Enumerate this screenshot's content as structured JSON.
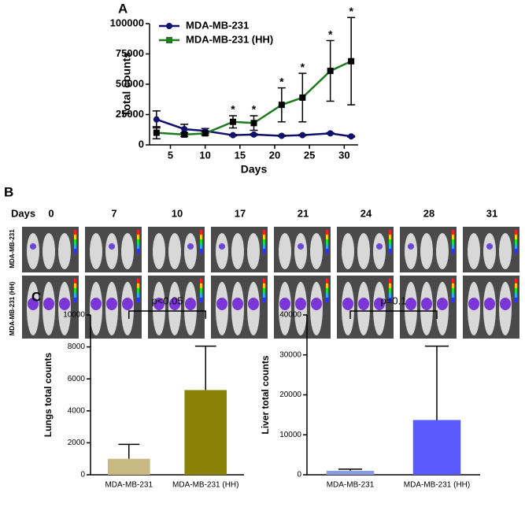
{
  "chart_data": [
    {
      "type": "line",
      "panel": "A",
      "xlabel": "Days",
      "ylabel": "Total counts",
      "x": [
        3,
        7,
        10,
        14,
        17,
        21,
        24,
        28,
        31
      ],
      "xlim": [
        2,
        32
      ],
      "xticks": [
        5,
        10,
        15,
        20,
        25,
        30
      ],
      "ylim": [
        0,
        100000
      ],
      "yticks": [
        0,
        25000,
        50000,
        75000,
        100000
      ],
      "legend": "top-left",
      "series": [
        {
          "name": "MDA-MB-231",
          "color": "#10106e",
          "marker": "circle",
          "values": [
            21000,
            13000,
            11500,
            8000,
            8500,
            7500,
            8000,
            9500,
            7000
          ],
          "errors": [
            7000,
            4000,
            2000,
            600,
            600,
            500,
            500,
            600,
            500
          ]
        },
        {
          "name": "MDA-MB-231 (HH)",
          "color": "#1f7a1f",
          "marker": "square",
          "values": [
            10000,
            8500,
            9500,
            19000,
            18000,
            33000,
            39000,
            61000,
            69000
          ],
          "errors": [
            5000,
            1500,
            1500,
            5000,
            6000,
            14000,
            20000,
            25000,
            36000
          ],
          "annotations": [
            null,
            null,
            null,
            "*",
            "*",
            "*",
            "*",
            "*",
            "*"
          ]
        }
      ]
    },
    {
      "type": "bar",
      "panel": "C",
      "ylabel": "Lungs total counts",
      "categories": [
        "MDA-MB-231",
        "MDA-MB-231 (HH)"
      ],
      "values": [
        1000,
        5300
      ],
      "errors": [
        900,
        2750
      ],
      "colors": [
        "#c8b882",
        "#8a8206"
      ],
      "ylim": [
        0,
        10000
      ],
      "yticks": [
        0,
        2000,
        4000,
        6000,
        8000,
        10000
      ],
      "comparison": "p<0.05"
    },
    {
      "type": "bar",
      "ylabel": "Liver total counts",
      "categories": [
        "MDA-MB-231",
        "MDA-MB-231 (HH)"
      ],
      "values": [
        1000,
        13700
      ],
      "errors": [
        400,
        18500
      ],
      "colors": [
        "#8c9be6",
        "#5a5aff"
      ],
      "ylim": [
        0,
        40000
      ],
      "yticks": [
        0,
        10000,
        20000,
        30000,
        40000
      ],
      "comparison": "p=0.1"
    }
  ],
  "image_panel": {
    "label": "B",
    "row_header": "Days",
    "days": [
      "0",
      "7",
      "10",
      "17",
      "21",
      "24",
      "28",
      "31"
    ],
    "rows": [
      "MDA-MB-231",
      "MDA-MB-231 (HH)"
    ]
  }
}
